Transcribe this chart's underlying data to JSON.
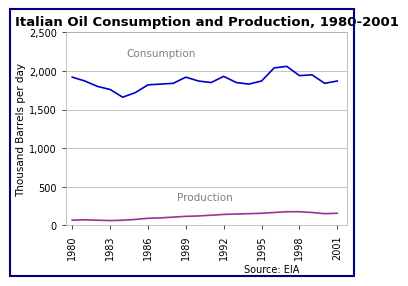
{
  "title": "Italian Oil Consumption and Production, 1980-2001",
  "ylabel": "Thousand Barrels per day",
  "source": "Source: EIA",
  "years": [
    1980,
    1981,
    1982,
    1983,
    1984,
    1985,
    1986,
    1987,
    1988,
    1989,
    1990,
    1991,
    1992,
    1993,
    1994,
    1995,
    1996,
    1997,
    1998,
    1999,
    2000,
    2001
  ],
  "consumption": [
    1920,
    1870,
    1800,
    1760,
    1660,
    1720,
    1820,
    1830,
    1840,
    1920,
    1870,
    1850,
    1930,
    1850,
    1830,
    1870,
    2040,
    2060,
    1940,
    1950,
    1840,
    1870
  ],
  "production": [
    65,
    70,
    65,
    60,
    65,
    75,
    90,
    95,
    105,
    115,
    120,
    130,
    140,
    145,
    150,
    155,
    165,
    175,
    175,
    165,
    150,
    155
  ],
  "consumption_color": "#0000CC",
  "production_color": "#993399",
  "ylim": [
    0,
    2500
  ],
  "yticks": [
    0,
    500,
    1000,
    1500,
    2000,
    2500
  ],
  "xticks": [
    1980,
    1983,
    1986,
    1989,
    1992,
    1995,
    1998,
    2001
  ],
  "background_color": "#ffffff",
  "plot_bg_color": "#ffffff",
  "grid_color": "#bbbbbb",
  "border_color": "#000080",
  "consumption_label": "Consumption",
  "production_label": "Production",
  "title_fontsize": 9.5,
  "label_fontsize": 7.5,
  "tick_fontsize": 7,
  "source_fontsize": 7
}
